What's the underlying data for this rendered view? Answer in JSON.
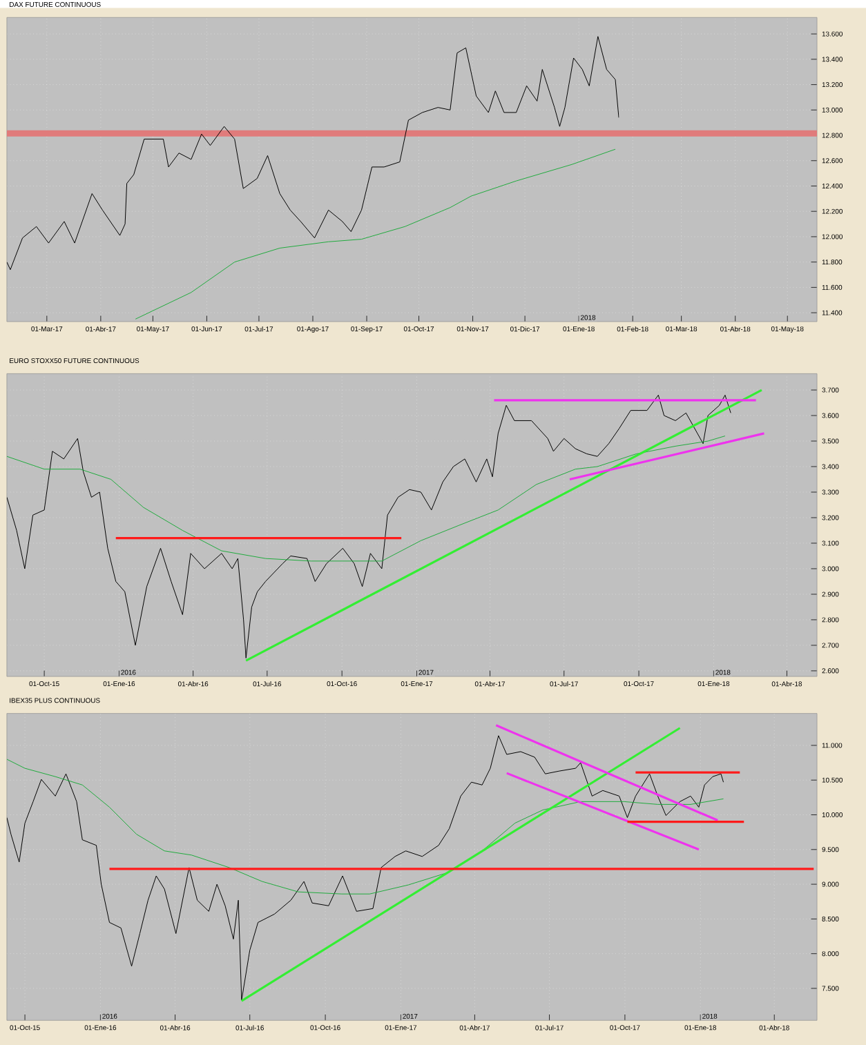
{
  "chart_data": [
    {
      "type": "line",
      "title": "DAX FUTURE CONTINUOUS",
      "xlim": [
        "2017-02-06",
        "2018-05-18"
      ],
      "ylim": [
        11330,
        13730
      ],
      "grid": true,
      "xticks": [
        {
          "value": "2017-03-01",
          "label": "01-Mar-17"
        },
        {
          "value": "2017-04-01",
          "label": "01-Abr-17"
        },
        {
          "value": "2017-05-01",
          "label": "01-May-17"
        },
        {
          "value": "2017-06-01",
          "label": "01-Jun-17"
        },
        {
          "value": "2017-07-01",
          "label": "01-Jul-17"
        },
        {
          "value": "2017-08-01",
          "label": "01-Ago-17"
        },
        {
          "value": "2017-09-01",
          "label": "01-Sep-17"
        },
        {
          "value": "2017-10-01",
          "label": "01-Oct-17"
        },
        {
          "value": "2017-11-01",
          "label": "01-Nov-17"
        },
        {
          "value": "2017-12-01",
          "label": "01-Dic-17"
        },
        {
          "value": "2018-01-01",
          "label": "01-Ene-18"
        },
        {
          "value": "2018-02-01",
          "label": "01-Feb-18"
        },
        {
          "value": "2018-03-01",
          "label": "01-Mar-18"
        },
        {
          "value": "2018-04-01",
          "label": "01-Abr-18"
        },
        {
          "value": "2018-05-01",
          "label": "01-May-18"
        }
      ],
      "yticks": [
        {
          "value": 11400,
          "label": "11.400"
        },
        {
          "value": 11600,
          "label": "11.600"
        },
        {
          "value": 11800,
          "label": "11.800"
        },
        {
          "value": 12000,
          "label": "12.000"
        },
        {
          "value": 12200,
          "label": "12.200"
        },
        {
          "value": 12400,
          "label": "12.400"
        },
        {
          "value": 12600,
          "label": "12.600"
        },
        {
          "value": 12800,
          "label": "12.800"
        },
        {
          "value": 13000,
          "label": "13.000"
        },
        {
          "value": 13200,
          "label": "13.200"
        },
        {
          "value": 13400,
          "label": "13.400"
        },
        {
          "value": 13600,
          "label": "13.600"
        }
      ],
      "bands": [
        {
          "axis": "y",
          "from": 12790,
          "to": 12840,
          "color": "#e07b7b"
        }
      ],
      "annotations": [
        "2018"
      ],
      "series": [
        {
          "color": "#000000",
          "x": [
            "2017-02-06",
            "2017-02-08",
            "2017-02-15",
            "2017-02-23",
            "2017-03-02",
            "2017-03-11",
            "2017-03-17",
            "2017-03-27",
            "2017-04-02",
            "2017-04-12",
            "2017-04-15",
            "2017-04-16",
            "2017-04-20",
            "2017-04-26",
            "2017-05-07",
            "2017-05-10",
            "2017-05-16",
            "2017-05-23",
            "2017-05-29",
            "2017-06-03",
            "2017-06-11",
            "2017-06-17",
            "2017-06-22",
            "2017-06-30",
            "2017-07-06",
            "2017-07-13",
            "2017-07-19",
            "2017-07-25",
            "2017-08-02",
            "2017-08-10",
            "2017-08-18",
            "2017-08-23",
            "2017-08-29",
            "2017-09-04",
            "2017-09-11",
            "2017-09-20",
            "2017-09-25",
            "2017-10-03",
            "2017-10-12",
            "2017-10-19",
            "2017-10-23",
            "2017-10-28",
            "2017-11-03",
            "2017-11-10",
            "2017-11-14",
            "2017-11-19",
            "2017-11-26",
            "2017-12-02",
            "2017-12-08",
            "2017-12-11",
            "2017-12-18",
            "2017-12-21",
            "2017-12-24",
            "2017-12-29",
            "2018-01-03",
            "2018-01-07",
            "2018-01-12",
            "2018-01-17",
            "2018-01-22",
            "2018-01-24"
          ],
          "values": [
            11800,
            11740,
            11990,
            12080,
            11950,
            12120,
            11950,
            12340,
            12210,
            12010,
            12100,
            12420,
            12490,
            12770,
            12770,
            12550,
            12660,
            12610,
            12810,
            12720,
            12870,
            12770,
            12380,
            12460,
            12640,
            12340,
            12210,
            12120,
            11990,
            12210,
            12120,
            12040,
            12210,
            12550,
            12550,
            12590,
            12920,
            12980,
            13020,
            13000,
            13450,
            13490,
            13110,
            12980,
            13150,
            12980,
            12980,
            13190,
            13070,
            13320,
            13020,
            12870,
            13020,
            13410,
            13320,
            13190,
            13580,
            13320,
            13240,
            12940
          ]
        },
        {
          "color": "#1faa3c",
          "x": [
            "2017-04-21",
            "2017-05-23",
            "2017-06-17",
            "2017-07-13",
            "2017-08-10",
            "2017-08-29",
            "2017-09-23",
            "2017-10-19",
            "2017-10-31",
            "2017-11-26",
            "2017-12-28",
            "2018-01-22"
          ],
          "values": [
            11350,
            11560,
            11800,
            11910,
            11960,
            11980,
            12080,
            12230,
            12320,
            12440,
            12570,
            12690
          ]
        }
      ]
    },
    {
      "type": "line",
      "title": "EURO STOXX50 FUTURE CONTINUOUS",
      "xlim": [
        "2015-08-16",
        "2018-05-08"
      ],
      "ylim": [
        2578,
        3764
      ],
      "grid": true,
      "xticks": [
        {
          "value": "2015-10-01",
          "label": "01-Oct-15"
        },
        {
          "value": "2016-01-01",
          "label": "01-Ene-16"
        },
        {
          "value": "2016-04-01",
          "label": "01-Abr-16"
        },
        {
          "value": "2016-07-01",
          "label": "01-Jul-16"
        },
        {
          "value": "2016-10-01",
          "label": "01-Oct-16"
        },
        {
          "value": "2017-01-01",
          "label": "01-Ene-17"
        },
        {
          "value": "2017-04-01",
          "label": "01-Abr-17"
        },
        {
          "value": "2017-07-01",
          "label": "01-Jul-17"
        },
        {
          "value": "2017-10-01",
          "label": "01-Oct-17"
        },
        {
          "value": "2018-01-01",
          "label": "01-Ene-18"
        },
        {
          "value": "2018-04-01",
          "label": "01-Abr-18"
        }
      ],
      "yticks": [
        {
          "value": 2600,
          "label": "2.600"
        },
        {
          "value": 2700,
          "label": "2.700"
        },
        {
          "value": 2800,
          "label": "2.800"
        },
        {
          "value": 2900,
          "label": "2.900"
        },
        {
          "value": 3000,
          "label": "3.000"
        },
        {
          "value": 3100,
          "label": "3.100"
        },
        {
          "value": 3200,
          "label": "3.200"
        },
        {
          "value": 3300,
          "label": "3.300"
        },
        {
          "value": 3400,
          "label": "3.400"
        },
        {
          "value": 3500,
          "label": "3.500"
        },
        {
          "value": 3600,
          "label": "3.600"
        },
        {
          "value": 3700,
          "label": "3.700"
        }
      ],
      "annotations": [
        "2016",
        "2017",
        "2018"
      ],
      "series": [
        {
          "color": "#000000",
          "x": [
            "2015-08-16",
            "2015-08-28",
            "2015-09-07",
            "2015-09-17",
            "2015-10-01",
            "2015-10-11",
            "2015-10-25",
            "2015-11-11",
            "2015-11-18",
            "2015-11-28",
            "2015-12-08",
            "2015-12-18",
            "2015-12-28",
            "2016-01-08",
            "2016-01-21",
            "2016-02-04",
            "2016-02-21",
            "2016-03-05",
            "2016-03-19",
            "2016-03-29",
            "2016-04-15",
            "2016-05-06",
            "2016-05-19",
            "2016-05-26",
            "2016-06-02",
            "2016-06-05",
            "2016-06-12",
            "2016-06-19",
            "2016-06-29",
            "2016-07-20",
            "2016-07-30",
            "2016-08-19",
            "2016-08-29",
            "2016-09-12",
            "2016-10-02",
            "2016-10-16",
            "2016-10-26",
            "2016-11-05",
            "2016-11-19",
            "2016-11-26",
            "2016-12-09",
            "2016-12-23",
            "2017-01-06",
            "2017-01-19",
            "2017-02-02",
            "2017-02-15",
            "2017-03-01",
            "2017-03-15",
            "2017-03-28",
            "2017-04-04",
            "2017-04-11",
            "2017-04-21",
            "2017-05-01",
            "2017-05-22",
            "2017-06-11",
            "2017-06-18",
            "2017-07-01",
            "2017-07-15",
            "2017-07-29",
            "2017-08-11",
            "2017-08-25",
            "2017-09-07",
            "2017-09-21",
            "2017-10-11",
            "2017-10-25",
            "2017-11-01",
            "2017-11-15",
            "2017-11-28",
            "2017-12-12",
            "2017-12-19",
            "2017-12-25",
            "2018-01-08",
            "2018-01-15",
            "2018-01-22"
          ],
          "values": [
            3280,
            3150,
            3000,
            3210,
            3230,
            3460,
            3430,
            3510,
            3380,
            3280,
            3300,
            3080,
            2950,
            2910,
            2700,
            2930,
            3080,
            2950,
            2820,
            3060,
            3000,
            3060,
            3000,
            3040,
            2800,
            2650,
            2850,
            2910,
            2950,
            3020,
            3050,
            3040,
            2950,
            3020,
            3080,
            3020,
            2930,
            3060,
            3000,
            3210,
            3280,
            3310,
            3300,
            3230,
            3340,
            3400,
            3430,
            3340,
            3430,
            3360,
            3530,
            3640,
            3580,
            3580,
            3510,
            3460,
            3510,
            3470,
            3450,
            3440,
            3490,
            3550,
            3620,
            3620,
            3680,
            3600,
            3580,
            3610,
            3530,
            3490,
            3600,
            3640,
            3680,
            3610
          ]
        },
        {
          "color": "#1faa3c",
          "x": [
            "2015-08-16",
            "2015-10-01",
            "2015-11-14",
            "2015-12-22",
            "2016-01-31",
            "2016-03-19",
            "2016-05-06",
            "2016-06-29",
            "2016-08-24",
            "2016-10-16",
            "2016-11-19",
            "2017-01-06",
            "2017-02-22",
            "2017-04-11",
            "2017-05-28",
            "2017-07-15",
            "2017-08-11",
            "2017-09-28",
            "2017-11-15",
            "2017-12-25",
            "2018-01-15"
          ],
          "values": [
            3440,
            3390,
            3390,
            3350,
            3240,
            3150,
            3070,
            3040,
            3030,
            3030,
            3030,
            3110,
            3170,
            3230,
            3330,
            3390,
            3400,
            3450,
            3480,
            3500,
            3520
          ]
        },
        {
          "color": "#33ee33",
          "x": [
            "2016-06-05",
            "2018-03-01"
          ],
          "values": [
            2640,
            3700
          ]
        },
        {
          "color": "#ee33ee",
          "x": [
            "2017-04-06",
            "2018-02-22"
          ],
          "values": [
            3660,
            3660
          ]
        },
        {
          "color": "#ee33ee",
          "x": [
            "2017-07-08",
            "2018-03-04"
          ],
          "values": [
            3350,
            3530
          ]
        },
        {
          "color": "#ff1a1a",
          "x": [
            "2015-12-28",
            "2016-12-13"
          ],
          "values": [
            3120,
            3120
          ]
        }
      ]
    },
    {
      "type": "line",
      "title": "IBEX35 PLUS CONTINUOUS",
      "xlim": [
        "2015-09-09",
        "2018-05-23"
      ],
      "ylim": [
        7040,
        11460
      ],
      "grid": true,
      "xticks": [
        {
          "value": "2015-10-01",
          "label": "01-Oct-15"
        },
        {
          "value": "2016-01-01",
          "label": "01-Ene-16"
        },
        {
          "value": "2016-04-01",
          "label": "01-Abr-16"
        },
        {
          "value": "2016-07-01",
          "label": "01-Jul-16"
        },
        {
          "value": "2016-10-01",
          "label": "01-Oct-16"
        },
        {
          "value": "2017-01-01",
          "label": "01-Ene-17"
        },
        {
          "value": "2017-04-01",
          "label": "01-Abr-17"
        },
        {
          "value": "2017-07-01",
          "label": "01-Jul-17"
        },
        {
          "value": "2017-10-01",
          "label": "01-Oct-17"
        },
        {
          "value": "2018-01-01",
          "label": "01-Ene-18"
        },
        {
          "value": "2018-04-01",
          "label": "01-Abr-18"
        }
      ],
      "yticks": [
        {
          "value": 7500,
          "label": "7.500"
        },
        {
          "value": 8000,
          "label": "8.000"
        },
        {
          "value": 8500,
          "label": "8.500"
        },
        {
          "value": 9000,
          "label": "9.000"
        },
        {
          "value": 9500,
          "label": "9.500"
        },
        {
          "value": 10000,
          "label": "10.000"
        },
        {
          "value": 10500,
          "label": "10.500"
        },
        {
          "value": 11000,
          "label": "11.000"
        }
      ],
      "annotations": [
        "2016",
        "2017",
        "2018"
      ],
      "series": [
        {
          "color": "#000000",
          "x": [
            "2015-09-09",
            "2015-09-14",
            "2015-09-24",
            "2015-10-01",
            "2015-10-11",
            "2015-10-21",
            "2015-11-07",
            "2015-11-20",
            "2015-12-03",
            "2015-12-10",
            "2015-12-27",
            "2016-01-02",
            "2016-01-12",
            "2016-01-26",
            "2016-02-08",
            "2016-02-18",
            "2016-02-28",
            "2016-03-09",
            "2016-03-19",
            "2016-04-02",
            "2016-04-18",
            "2016-04-28",
            "2016-05-12",
            "2016-05-22",
            "2016-06-01",
            "2016-06-11",
            "2016-06-17",
            "2016-06-21",
            "2016-07-01",
            "2016-07-11",
            "2016-07-31",
            "2016-08-20",
            "2016-09-05",
            "2016-09-15",
            "2016-10-05",
            "2016-10-22",
            "2016-11-08",
            "2016-11-28",
            "2016-12-08",
            "2016-12-25",
            "2017-01-07",
            "2017-01-27",
            "2017-02-16",
            "2017-03-01",
            "2017-03-15",
            "2017-03-28",
            "2017-04-10",
            "2017-04-20",
            "2017-04-30",
            "2017-05-10",
            "2017-05-27",
            "2017-06-13",
            "2017-06-26",
            "2017-07-13",
            "2017-08-02",
            "2017-08-08",
            "2017-08-22",
            "2017-09-04",
            "2017-09-24",
            "2017-10-04",
            "2017-10-14",
            "2017-10-31",
            "2017-11-10",
            "2017-11-20",
            "2017-12-07",
            "2017-12-20",
            "2017-12-30",
            "2018-01-06",
            "2018-01-16",
            "2018-01-26",
            "2018-01-29"
          ],
          "values": [
            9960,
            9720,
            9320,
            9880,
            10190,
            10510,
            10270,
            10590,
            10190,
            9640,
            9560,
            9000,
            8450,
            8370,
            7820,
            8290,
            8770,
            9120,
            8930,
            8290,
            9240,
            8770,
            8610,
            9000,
            8690,
            8210,
            8770,
            7330,
            8050,
            8450,
            8570,
            8770,
            9040,
            8730,
            8690,
            9120,
            8610,
            8650,
            9240,
            9400,
            9480,
            9400,
            9560,
            9800,
            10270,
            10470,
            10430,
            10670,
            11140,
            10870,
            10910,
            10830,
            10590,
            10630,
            10670,
            10750,
            10270,
            10350,
            10270,
            9960,
            10270,
            10590,
            10270,
            9990,
            10190,
            10270,
            10110,
            10430,
            10550,
            10590,
            10470
          ]
        },
        {
          "color": "#1faa3c",
          "x": [
            "2015-09-09",
            "2015-10-01",
            "2015-11-07",
            "2015-12-10",
            "2016-01-12",
            "2016-02-14",
            "2016-03-19",
            "2016-04-21",
            "2016-06-06",
            "2016-07-16",
            "2016-08-29",
            "2016-10-21",
            "2016-11-24",
            "2017-01-10",
            "2017-02-25",
            "2017-04-10",
            "2017-05-20",
            "2017-06-23",
            "2017-08-08",
            "2017-09-30",
            "2017-11-10",
            "2017-12-20",
            "2018-01-29"
          ],
          "values": [
            10800,
            10670,
            10550,
            10430,
            10110,
            9720,
            9480,
            9420,
            9240,
            9040,
            8890,
            8860,
            8860,
            8990,
            9160,
            9480,
            9880,
            10070,
            10190,
            10190,
            10150,
            10150,
            10230
          ]
        },
        {
          "color": "#33ee33",
          "x": [
            "2016-06-21",
            "2017-12-07"
          ],
          "values": [
            7320,
            11250
          ]
        },
        {
          "color": "#ee33ee",
          "x": [
            "2017-04-27",
            "2018-01-22"
          ],
          "values": [
            11290,
            9920
          ]
        },
        {
          "color": "#ee33ee",
          "x": [
            "2017-05-10",
            "2017-12-30"
          ],
          "values": [
            10600,
            9500
          ]
        },
        {
          "color": "#ff1a1a",
          "x": [
            "2017-10-14",
            "2018-02-18"
          ],
          "values": [
            10610,
            10610
          ]
        },
        {
          "color": "#ff1a1a",
          "x": [
            "2017-10-04",
            "2018-02-23"
          ],
          "values": [
            9900,
            9900
          ]
        },
        {
          "color": "#ff1a1a",
          "x": [
            "2016-01-12",
            "2018-05-19"
          ],
          "values": [
            9220,
            9220
          ]
        }
      ]
    }
  ]
}
